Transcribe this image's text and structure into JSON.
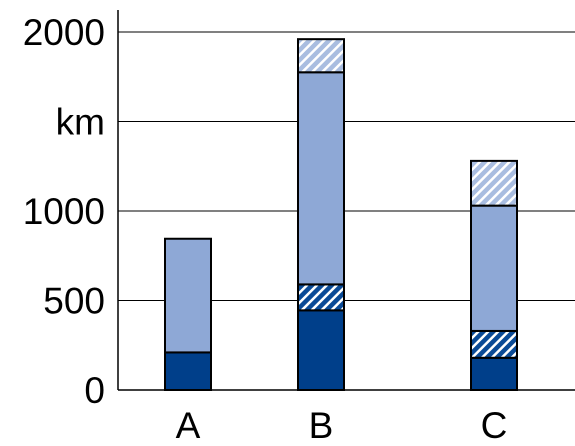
{
  "chart_data": {
    "type": "bar",
    "stacked": true,
    "categories": [
      "A",
      "B",
      "C"
    ],
    "series": [
      {
        "values": [
          210,
          445,
          180
        ],
        "color": "#003f8a",
        "pattern": "solid"
      },
      {
        "values": [
          0,
          145,
          150
        ],
        "color": "#0a4a96",
        "pattern": "hatched-dark"
      },
      {
        "values": [
          635,
          1185,
          700
        ],
        "color": "#8ea8d6",
        "pattern": "solid"
      },
      {
        "values": [
          0,
          185,
          250
        ],
        "color": "#a9bde0",
        "pattern": "hatched-light"
      }
    ],
    "ylim": [
      0,
      2000
    ],
    "yticks": [
      {
        "value": 0,
        "label": "0"
      },
      {
        "value": 500,
        "label": "500"
      },
      {
        "value": 1000,
        "label": "1000"
      },
      {
        "value": 1500,
        "label": "km"
      },
      {
        "value": 2000,
        "label": "2000"
      }
    ],
    "grid": true,
    "legend": "none"
  }
}
